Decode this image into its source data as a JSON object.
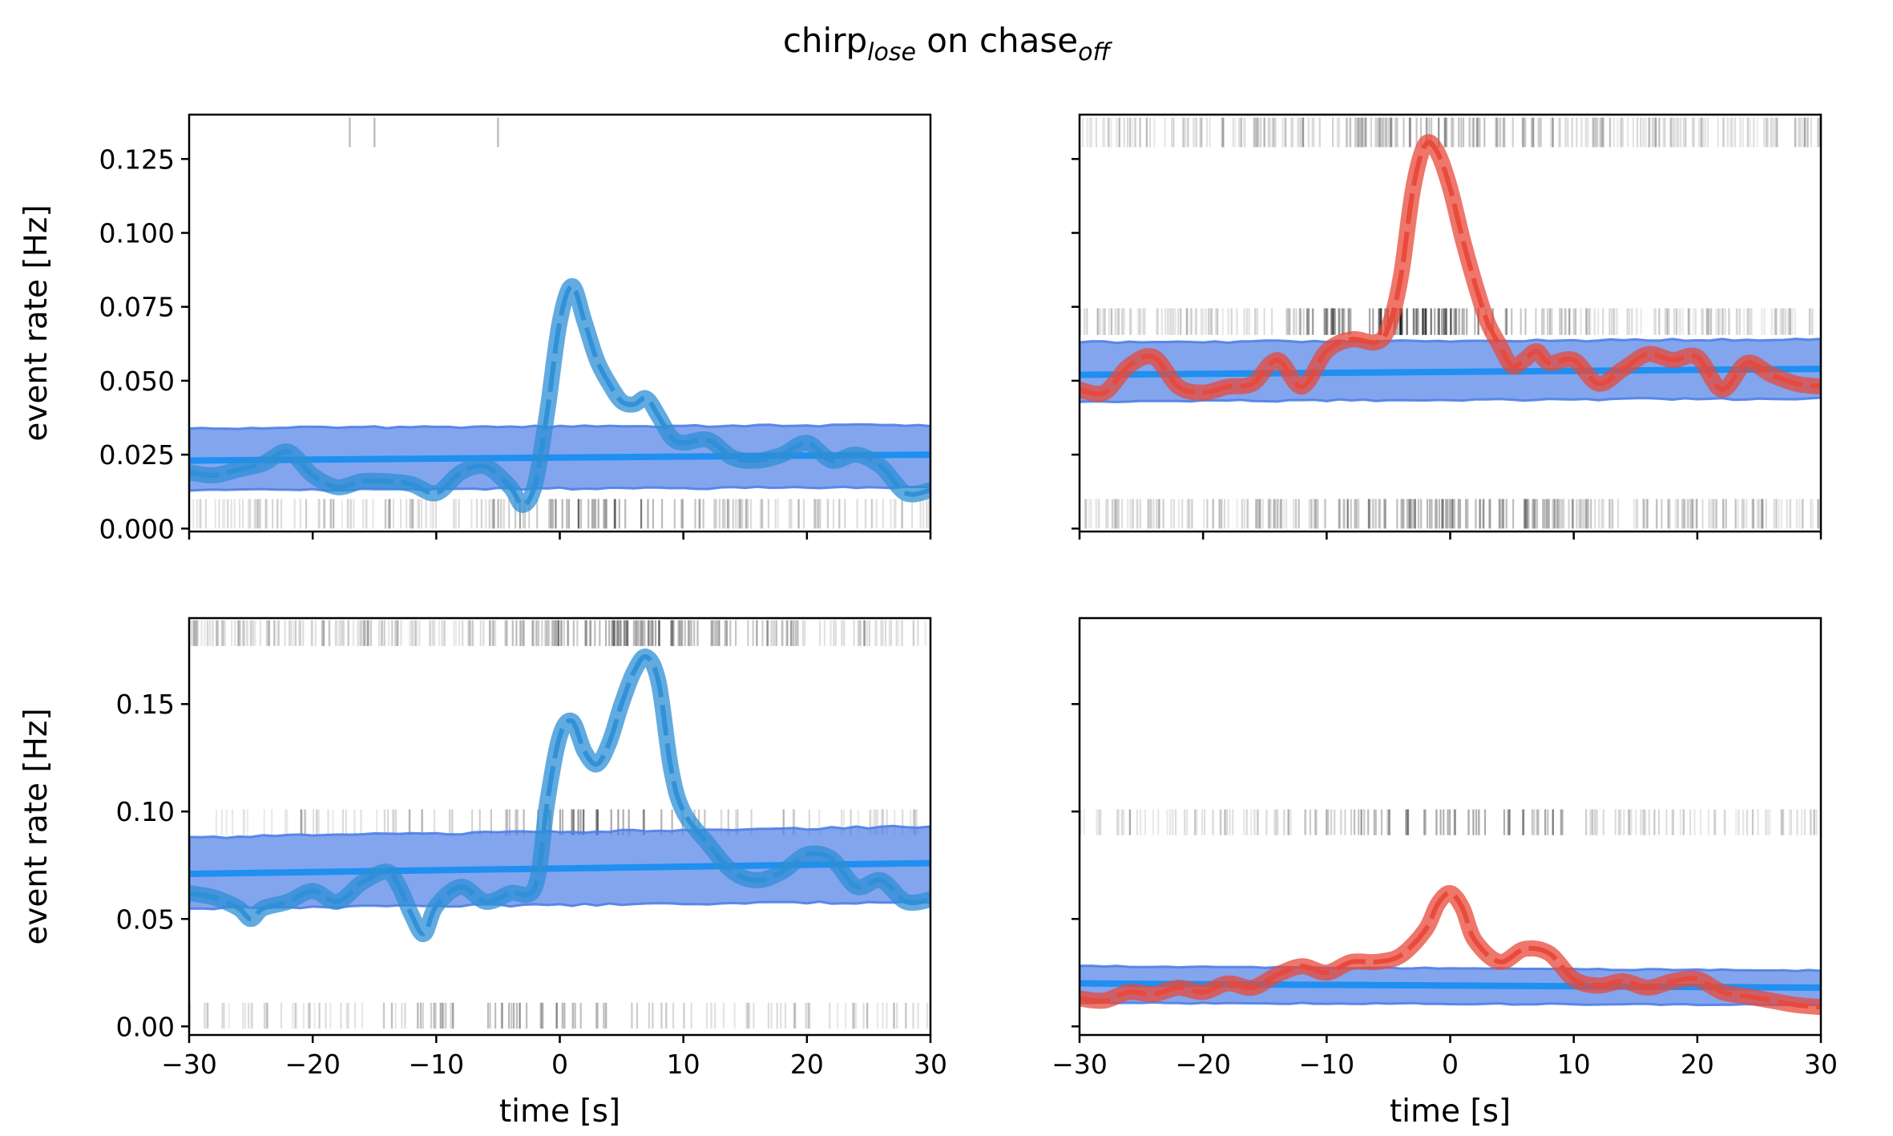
{
  "figure": {
    "title_main": "chirp",
    "title_sub1": "lose",
    "title_mid": " on chase",
    "title_sub2": "off"
  },
  "colors": {
    "blue_line": "#1f8ff0",
    "blue_band": "#4f7fe6",
    "blue_obs": "#2e8fd6",
    "red_obs": "#e8483a",
    "raster": "#000000"
  },
  "chart_data": [
    {
      "type": "line",
      "panel": "top-left",
      "xlabel": "",
      "ylabel": "event rate [Hz]",
      "xlim": [
        -30,
        30
      ],
      "ylim": [
        -0.001,
        0.14
      ],
      "xticks": [
        -30,
        -20,
        -10,
        0,
        10,
        20,
        30
      ],
      "yticks": [
        0.0,
        0.025,
        0.05,
        0.075,
        0.1,
        0.125
      ],
      "ytick_labels": [
        "0.000",
        "0.025",
        "0.050",
        "0.075",
        "0.100",
        "0.125"
      ],
      "show_xtick_labels": false,
      "show_ylabel": true,
      "observed_color": "blue",
      "observed": {
        "x": [
          -30,
          -28,
          -26,
          -24,
          -22,
          -20,
          -18,
          -16,
          -14,
          -12,
          -10,
          -8,
          -6,
          -4,
          -3,
          -2,
          -1,
          0,
          1,
          2,
          3,
          4,
          5,
          6,
          7,
          8,
          9,
          10,
          12,
          14,
          16,
          18,
          20,
          22,
          24,
          26,
          28,
          30
        ],
        "y": [
          0.019,
          0.018,
          0.02,
          0.022,
          0.026,
          0.018,
          0.014,
          0.016,
          0.016,
          0.015,
          0.012,
          0.019,
          0.021,
          0.014,
          0.008,
          0.015,
          0.04,
          0.07,
          0.082,
          0.07,
          0.057,
          0.049,
          0.043,
          0.042,
          0.044,
          0.038,
          0.031,
          0.029,
          0.03,
          0.024,
          0.023,
          0.025,
          0.029,
          0.023,
          0.025,
          0.021,
          0.012,
          0.013
        ]
      },
      "baseline": {
        "x": [
          -30,
          30
        ],
        "y": [
          0.023,
          0.025
        ]
      },
      "band": {
        "x": [
          -30,
          30
        ],
        "lower": [
          0.013,
          0.014
        ],
        "upper": [
          0.034,
          0.035
        ]
      },
      "rasters": [
        {
          "y": 0.005,
          "height": 0.01,
          "mode": "dense",
          "density": 0.55,
          "peak": 5,
          "boost": 1.6
        },
        {
          "y": 0.134,
          "height": 0.01,
          "mode": "sparse",
          "times": [
            -17.0,
            -15.0,
            -5.0
          ]
        }
      ]
    },
    {
      "type": "line",
      "panel": "top-right",
      "xlabel": "",
      "ylabel": "",
      "xlim": [
        -30,
        30
      ],
      "ylim": [
        -0.001,
        0.14
      ],
      "xticks": [
        -30,
        -20,
        -10,
        0,
        10,
        20,
        30
      ],
      "yticks": [
        0.0,
        0.025,
        0.05,
        0.075,
        0.1,
        0.125
      ],
      "ytick_labels": [],
      "show_xtick_labels": false,
      "show_ylabel": false,
      "observed_color": "red",
      "observed": {
        "x": [
          -30,
          -28,
          -26,
          -24,
          -22,
          -20,
          -18,
          -16,
          -14,
          -12,
          -10,
          -8,
          -6,
          -5,
          -4,
          -3,
          -2,
          -1,
          0,
          1,
          2,
          3,
          4,
          5,
          6,
          7,
          8,
          10,
          12,
          14,
          16,
          18,
          20,
          22,
          24,
          26,
          28,
          30
        ],
        "y": [
          0.047,
          0.046,
          0.055,
          0.058,
          0.048,
          0.046,
          0.048,
          0.049,
          0.057,
          0.048,
          0.06,
          0.064,
          0.063,
          0.068,
          0.085,
          0.115,
          0.13,
          0.127,
          0.115,
          0.098,
          0.083,
          0.07,
          0.062,
          0.055,
          0.057,
          0.06,
          0.056,
          0.057,
          0.049,
          0.054,
          0.059,
          0.057,
          0.058,
          0.047,
          0.056,
          0.052,
          0.049,
          0.048
        ]
      },
      "baseline": {
        "x": [
          -30,
          30
        ],
        "y": [
          0.052,
          0.054
        ]
      },
      "band": {
        "x": [
          -30,
          30
        ],
        "lower": [
          0.043,
          0.044
        ],
        "upper": [
          0.063,
          0.064
        ]
      },
      "rasters": [
        {
          "y": 0.005,
          "height": 0.01,
          "mode": "dense",
          "density": 0.9,
          "peak": 0,
          "boost": 1.4
        },
        {
          "y": 0.07,
          "height": 0.009,
          "mode": "dense",
          "density": 0.8,
          "peak": -3,
          "boost": 2.0
        },
        {
          "y": 0.134,
          "height": 0.01,
          "mode": "dense",
          "density": 0.8,
          "peak": 0,
          "boost": 1.0
        }
      ]
    },
    {
      "type": "line",
      "panel": "bottom-left",
      "xlabel": "time [s]",
      "ylabel": "event rate [Hz]",
      "xlim": [
        -30,
        30
      ],
      "ylim": [
        -0.004,
        0.19
      ],
      "xticks": [
        -30,
        -20,
        -10,
        0,
        10,
        20,
        30
      ],
      "xtick_labels": [
        "−30",
        "−20",
        "−10",
        "0",
        "10",
        "20",
        "30"
      ],
      "yticks": [
        0.0,
        0.05,
        0.1,
        0.15
      ],
      "ytick_labels": [
        "0.00",
        "0.05",
        "0.10",
        "0.15"
      ],
      "show_xtick_labels": true,
      "show_ylabel": true,
      "observed_color": "blue",
      "observed": {
        "x": [
          -30,
          -28,
          -26,
          -25,
          -24,
          -22,
          -20,
          -18,
          -16,
          -14,
          -13,
          -12,
          -11,
          -10,
          -8,
          -6,
          -4,
          -2,
          -1,
          0,
          1,
          2,
          3,
          4,
          5,
          6,
          7,
          8,
          9,
          10,
          12,
          14,
          16,
          18,
          20,
          22,
          24,
          26,
          28,
          30
        ],
        "y": [
          0.062,
          0.06,
          0.055,
          0.05,
          0.055,
          0.058,
          0.063,
          0.058,
          0.067,
          0.072,
          0.065,
          0.052,
          0.043,
          0.056,
          0.065,
          0.058,
          0.062,
          0.065,
          0.105,
          0.135,
          0.142,
          0.128,
          0.122,
          0.132,
          0.15,
          0.165,
          0.172,
          0.16,
          0.12,
          0.1,
          0.085,
          0.072,
          0.068,
          0.072,
          0.08,
          0.078,
          0.065,
          0.068,
          0.058,
          0.059
        ]
      },
      "baseline": {
        "x": [
          -30,
          30
        ],
        "y": [
          0.071,
          0.076
        ]
      },
      "band": {
        "x": [
          -30,
          30
        ],
        "lower": [
          0.055,
          0.058
        ],
        "upper": [
          0.088,
          0.093
        ]
      },
      "rasters": [
        {
          "y": 0.005,
          "height": 0.012,
          "mode": "dense",
          "density": 0.4,
          "peak": 0,
          "boost": 1.5
        },
        {
          "y": 0.095,
          "height": 0.012,
          "mode": "dense",
          "density": 0.3,
          "peak": 3,
          "boost": 2.0
        },
        {
          "y": 0.183,
          "height": 0.012,
          "mode": "dense",
          "density": 0.9,
          "peak": 7,
          "boost": 1.4
        }
      ]
    },
    {
      "type": "line",
      "panel": "bottom-right",
      "xlabel": "time [s]",
      "ylabel": "",
      "xlim": [
        -30,
        30
      ],
      "ylim": [
        -0.004,
        0.19
      ],
      "xticks": [
        -30,
        -20,
        -10,
        0,
        10,
        20,
        30
      ],
      "xtick_labels": [
        "−30",
        "−20",
        "−10",
        "0",
        "10",
        "20",
        "30"
      ],
      "yticks": [
        0.0,
        0.05,
        0.1,
        0.15
      ],
      "ytick_labels": [],
      "show_xtick_labels": true,
      "show_ylabel": false,
      "observed_color": "red",
      "observed": {
        "x": [
          -30,
          -28,
          -26,
          -24,
          -22,
          -20,
          -18,
          -16,
          -14,
          -12,
          -10,
          -8,
          -6,
          -4,
          -2,
          -1,
          0,
          1,
          2,
          4,
          6,
          8,
          10,
          12,
          14,
          16,
          18,
          20,
          22,
          24,
          26,
          28,
          30
        ],
        "y": [
          0.013,
          0.012,
          0.016,
          0.015,
          0.018,
          0.016,
          0.02,
          0.018,
          0.024,
          0.028,
          0.025,
          0.03,
          0.03,
          0.033,
          0.045,
          0.057,
          0.062,
          0.055,
          0.04,
          0.03,
          0.036,
          0.034,
          0.022,
          0.019,
          0.021,
          0.018,
          0.021,
          0.022,
          0.016,
          0.014,
          0.012,
          0.01,
          0.009
        ]
      },
      "baseline": {
        "x": [
          -30,
          30
        ],
        "y": [
          0.02,
          0.018
        ]
      },
      "band": {
        "x": [
          -30,
          30
        ],
        "lower": [
          0.011,
          0.01
        ],
        "upper": [
          0.028,
          0.026
        ]
      },
      "rasters": [
        {
          "y": 0.095,
          "height": 0.012,
          "mode": "dense",
          "density": 0.5,
          "peak": 0,
          "boost": 1.8
        }
      ]
    }
  ]
}
